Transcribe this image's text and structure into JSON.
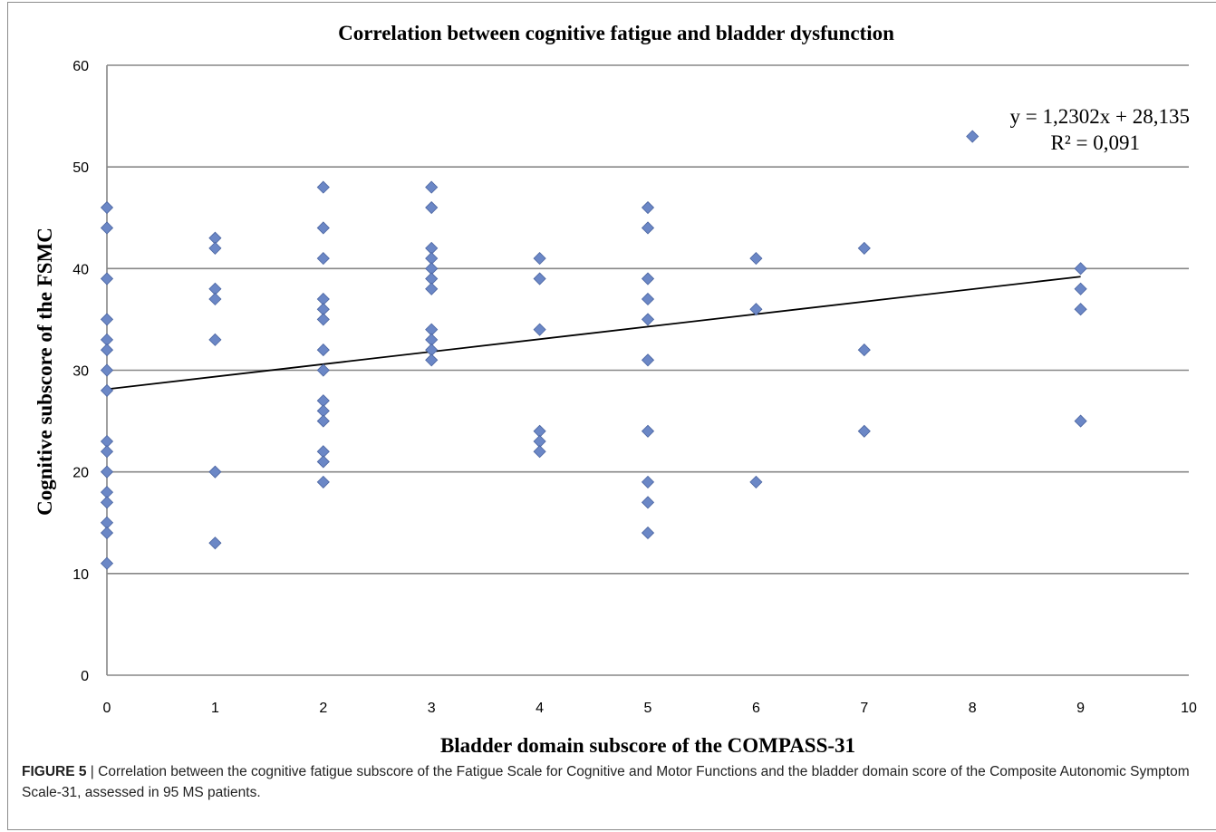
{
  "figure": {
    "label": "FIGURE 5",
    "separator": " | ",
    "caption": "Correlation between the cognitive fatigue subscore of the Fatigue Scale for Cognitive and Motor Functions and the bladder domain score of the Composite Autonomic Symptom Scale-31, assessed in 95 MS patients."
  },
  "chart_data": {
    "type": "scatter",
    "title": "Correlation between cognitive fatigue and bladder dysfunction",
    "xlabel": "Bladder domain subscore of the COMPASS-31",
    "ylabel": "Cognitive subscore of the FSMC",
    "xlim": [
      0,
      10
    ],
    "ylim": [
      0,
      60
    ],
    "x_ticks": [
      "0",
      "1",
      "2",
      "3",
      "4",
      "5",
      "6",
      "7",
      "8",
      "9",
      "10"
    ],
    "y_ticks": [
      "0",
      "10",
      "20",
      "30",
      "40",
      "50",
      "60"
    ],
    "grid": true,
    "marker": "diamond",
    "colors": {
      "marker": "#6b87c6",
      "trendline": "#000000",
      "grid": "#878787"
    },
    "points": [
      {
        "x": 0,
        "y": 46
      },
      {
        "x": 0,
        "y": 44
      },
      {
        "x": 0,
        "y": 39
      },
      {
        "x": 0,
        "y": 35
      },
      {
        "x": 0,
        "y": 33
      },
      {
        "x": 0,
        "y": 32
      },
      {
        "x": 0,
        "y": 30
      },
      {
        "x": 0,
        "y": 28
      },
      {
        "x": 0,
        "y": 23
      },
      {
        "x": 0,
        "y": 22
      },
      {
        "x": 0,
        "y": 20
      },
      {
        "x": 0,
        "y": 18
      },
      {
        "x": 0,
        "y": 17
      },
      {
        "x": 0,
        "y": 15
      },
      {
        "x": 0,
        "y": 14
      },
      {
        "x": 0,
        "y": 11
      },
      {
        "x": 1,
        "y": 43
      },
      {
        "x": 1,
        "y": 42
      },
      {
        "x": 1,
        "y": 38
      },
      {
        "x": 1,
        "y": 37
      },
      {
        "x": 1,
        "y": 33
      },
      {
        "x": 1,
        "y": 20
      },
      {
        "x": 1,
        "y": 13
      },
      {
        "x": 2,
        "y": 48
      },
      {
        "x": 2,
        "y": 44
      },
      {
        "x": 2,
        "y": 41
      },
      {
        "x": 2,
        "y": 37
      },
      {
        "x": 2,
        "y": 36
      },
      {
        "x": 2,
        "y": 35
      },
      {
        "x": 2,
        "y": 32
      },
      {
        "x": 2,
        "y": 30
      },
      {
        "x": 2,
        "y": 27
      },
      {
        "x": 2,
        "y": 26
      },
      {
        "x": 2,
        "y": 25
      },
      {
        "x": 2,
        "y": 22
      },
      {
        "x": 2,
        "y": 21
      },
      {
        "x": 2,
        "y": 19
      },
      {
        "x": 3,
        "y": 48
      },
      {
        "x": 3,
        "y": 46
      },
      {
        "x": 3,
        "y": 42
      },
      {
        "x": 3,
        "y": 41
      },
      {
        "x": 3,
        "y": 40
      },
      {
        "x": 3,
        "y": 39
      },
      {
        "x": 3,
        "y": 38
      },
      {
        "x": 3,
        "y": 34
      },
      {
        "x": 3,
        "y": 33
      },
      {
        "x": 3,
        "y": 32
      },
      {
        "x": 3,
        "y": 31
      },
      {
        "x": 4,
        "y": 41
      },
      {
        "x": 4,
        "y": 39
      },
      {
        "x": 4,
        "y": 34
      },
      {
        "x": 4,
        "y": 24
      },
      {
        "x": 4,
        "y": 23
      },
      {
        "x": 4,
        "y": 22
      },
      {
        "x": 5,
        "y": 46
      },
      {
        "x": 5,
        "y": 44
      },
      {
        "x": 5,
        "y": 39
      },
      {
        "x": 5,
        "y": 37
      },
      {
        "x": 5,
        "y": 35
      },
      {
        "x": 5,
        "y": 31
      },
      {
        "x": 5,
        "y": 24
      },
      {
        "x": 5,
        "y": 19
      },
      {
        "x": 5,
        "y": 17
      },
      {
        "x": 5,
        "y": 14
      },
      {
        "x": 6,
        "y": 41
      },
      {
        "x": 6,
        "y": 36
      },
      {
        "x": 6,
        "y": 19
      },
      {
        "x": 7,
        "y": 42
      },
      {
        "x": 7,
        "y": 32
      },
      {
        "x": 7,
        "y": 24
      },
      {
        "x": 8,
        "y": 53
      },
      {
        "x": 9,
        "y": 40
      },
      {
        "x": 9,
        "y": 38
      },
      {
        "x": 9,
        "y": 36
      },
      {
        "x": 9,
        "y": 25
      }
    ],
    "trendline": {
      "slope": 1.2302,
      "intercept": 28.135,
      "x_range": [
        0,
        9
      ],
      "equation": "y = 1,2302x + 28,135",
      "r_squared": "R² = 0,091"
    }
  }
}
